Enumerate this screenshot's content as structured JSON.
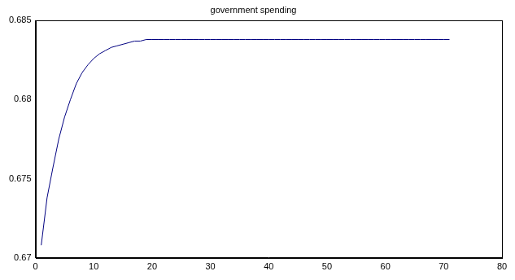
{
  "chart_data": {
    "type": "line",
    "title": "government spending",
    "x": [
      1,
      2,
      3,
      4,
      5,
      6,
      7,
      8,
      9,
      10,
      11,
      12,
      13,
      14,
      15,
      16,
      17,
      18,
      19,
      20,
      21,
      22,
      23,
      24,
      25,
      26,
      27,
      28,
      29,
      30,
      31,
      32,
      33,
      34,
      35,
      36,
      37,
      38,
      39,
      40,
      41,
      42,
      43,
      44,
      45,
      46,
      47,
      48,
      49,
      50,
      51,
      52,
      53,
      54,
      55,
      56,
      57,
      58,
      59,
      60,
      61,
      62,
      63,
      64,
      65,
      66,
      67,
      68,
      69,
      70,
      71
    ],
    "values": [
      0.6708,
      0.6738,
      0.6757,
      0.6775,
      0.6789,
      0.68,
      0.681,
      0.6817,
      0.6822,
      0.6826,
      0.6829,
      0.6831,
      0.6833,
      0.6834,
      0.6835,
      0.6836,
      0.6837,
      0.6837,
      0.6838,
      0.6838,
      0.6838,
      0.6838,
      0.6838,
      0.6838,
      0.6838,
      0.6838,
      0.6838,
      0.6838,
      0.6838,
      0.6838,
      0.6838,
      0.6838,
      0.6838,
      0.6838,
      0.6838,
      0.6838,
      0.6838,
      0.6838,
      0.6838,
      0.6838,
      0.6838,
      0.6838,
      0.6838,
      0.6838,
      0.6838,
      0.6838,
      0.6838,
      0.6838,
      0.6838,
      0.6838,
      0.6838,
      0.6838,
      0.6838,
      0.6838,
      0.6838,
      0.6838,
      0.6838,
      0.6838,
      0.6838,
      0.6838,
      0.6838,
      0.6838,
      0.6838,
      0.6838,
      0.6838,
      0.6838,
      0.6838,
      0.6838,
      0.6838,
      0.6838,
      0.6838
    ],
    "color": "#000080",
    "xlim": [
      0,
      80
    ],
    "xticks": [
      0,
      10,
      20,
      30,
      40,
      50,
      60,
      70,
      80
    ],
    "ylim": [
      0.67,
      0.685
    ],
    "yticks": [
      0.67,
      0.675,
      0.68,
      0.685
    ],
    "grid": false
  }
}
